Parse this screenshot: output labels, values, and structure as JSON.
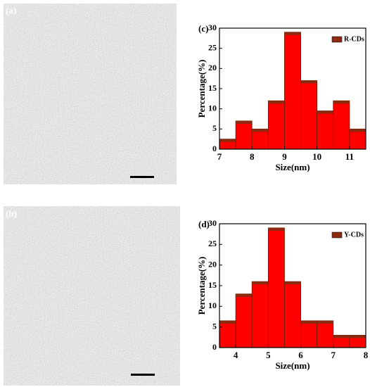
{
  "panels": {
    "a": "(a)",
    "b": "(b)"
  },
  "chart_data": [
    {
      "type": "histogram",
      "title": "(c)",
      "legend": "R-CDs",
      "xlabel": "Size(nm)",
      "ylabel": "Percentage(%)",
      "bins": [
        7,
        7.5,
        8,
        8.5,
        9,
        9.5,
        10,
        10.5,
        11,
        11.5
      ],
      "values": [
        2.5,
        7,
        5,
        12,
        29,
        17,
        9.5,
        12,
        5
      ],
      "color": "#ff0000",
      "cap_color": "#8b2a10",
      "xlim": [
        7,
        11.5
      ],
      "xticks": [
        7,
        8,
        9,
        10,
        11
      ],
      "ylim": [
        0,
        30
      ],
      "yticks": [
        0,
        5,
        10,
        15,
        20,
        25,
        30
      ]
    },
    {
      "type": "histogram",
      "title": "(d)",
      "legend": "Y-CDs",
      "xlabel": "Size(nm)",
      "ylabel": "Percentage(%)",
      "bins": [
        3.5,
        4,
        4.5,
        5,
        5.5,
        6,
        6.5,
        7,
        7.5,
        8
      ],
      "values": [
        6.5,
        13,
        16,
        29,
        16,
        6.5,
        6.5,
        3,
        3
      ],
      "color": "#ff0000",
      "cap_color": "#8b2a10",
      "xlim": [
        3.5,
        8
      ],
      "xticks": [
        4,
        5,
        6,
        7,
        8
      ],
      "ylim": [
        0,
        30
      ],
      "yticks": [
        0,
        5,
        10,
        15,
        20,
        25,
        30
      ]
    }
  ]
}
